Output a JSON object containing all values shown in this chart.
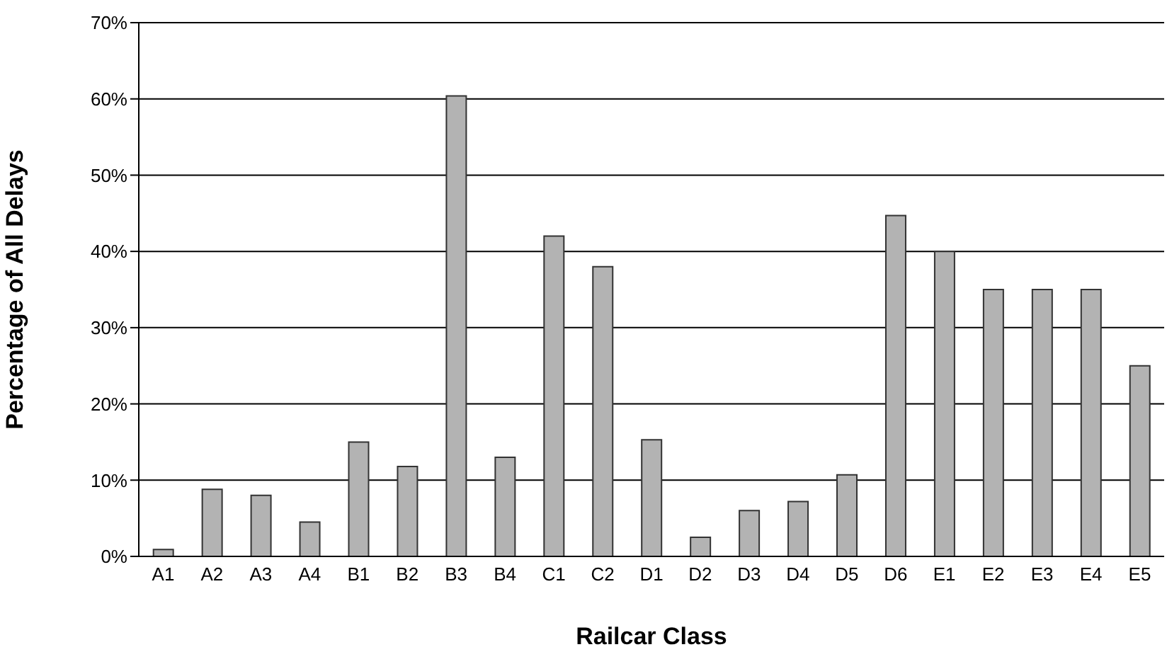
{
  "chart_data": {
    "type": "bar",
    "xlabel": "Railcar Class",
    "ylabel": "Percentage of All Delays",
    "categories": [
      "A1",
      "A2",
      "A3",
      "A4",
      "B1",
      "B2",
      "B3",
      "B4",
      "C1",
      "C2",
      "D1",
      "D2",
      "D3",
      "D4",
      "D5",
      "D6",
      "E1",
      "E2",
      "E3",
      "E4",
      "E5"
    ],
    "values": [
      0.9,
      8.8,
      8.0,
      4.5,
      15.0,
      11.8,
      60.4,
      13.0,
      42.0,
      38.0,
      15.3,
      2.5,
      6.0,
      7.2,
      10.7,
      44.7,
      40,
      35,
      35,
      35,
      25
    ],
    "color": "#b3b3b3",
    "ylim": [
      0,
      70
    ],
    "yticks": [
      {
        "value": 0,
        "label": "0%"
      },
      {
        "value": 10,
        "label": "10%"
      },
      {
        "value": 20,
        "label": "20%"
      },
      {
        "value": 30,
        "label": "30%"
      },
      {
        "value": 40,
        "label": "40%"
      },
      {
        "value": 50,
        "label": "50%"
      },
      {
        "value": 60,
        "label": "60%"
      },
      {
        "value": 70,
        "label": "70%"
      }
    ],
    "grid": "y",
    "legend": false
  }
}
